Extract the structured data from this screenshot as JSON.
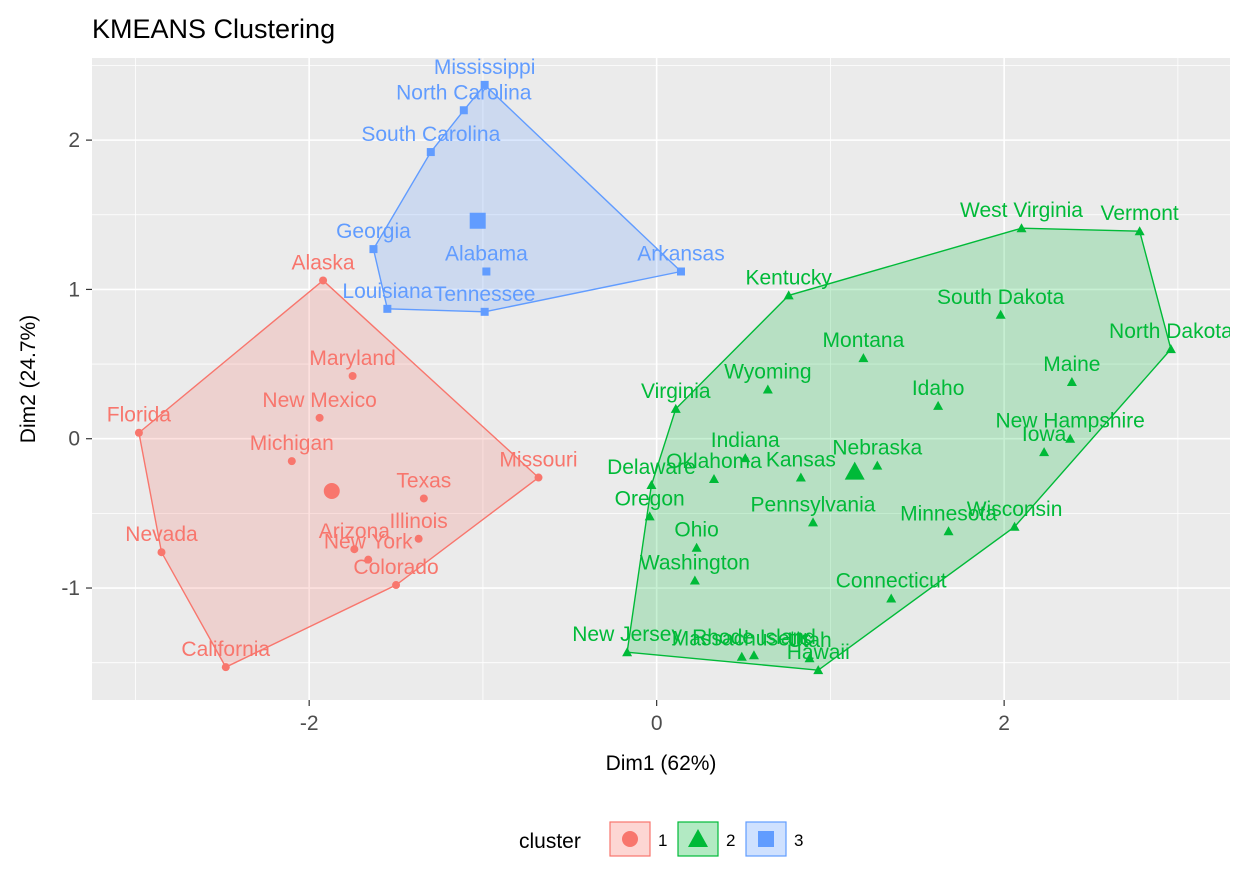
{
  "chart_data": {
    "type": "scatter",
    "title": "KMEANS Clustering",
    "xlabel": "Dim1 (62%)",
    "ylabel": "Dim2 (24.7%)",
    "xlim": [
      -3.25,
      3.3
    ],
    "ylim": [
      -1.75,
      2.55
    ],
    "x_ticks": [
      -2,
      0,
      2
    ],
    "y_ticks": [
      -1,
      0,
      1,
      2
    ],
    "grid": true,
    "legend": {
      "title": "cluster",
      "position": "bottom",
      "entries": [
        {
          "label": "1",
          "color": "#F8766D",
          "shape": "circle"
        },
        {
          "label": "2",
          "color": "#00BA38",
          "shape": "triangle"
        },
        {
          "label": "3",
          "color": "#619CFF",
          "shape": "square"
        }
      ]
    },
    "series": [
      {
        "name": "1",
        "color": "#F8766D",
        "shape": "circle",
        "centroid": [
          -1.87,
          -0.35
        ],
        "points": [
          {
            "label": "Alaska",
            "x": -1.92,
            "y": 1.06
          },
          {
            "label": "Florida",
            "x": -2.98,
            "y": 0.04
          },
          {
            "label": "Nevada",
            "x": -2.85,
            "y": -0.76
          },
          {
            "label": "California",
            "x": -2.48,
            "y": -1.53
          },
          {
            "label": "Maryland",
            "x": -1.75,
            "y": 0.42
          },
          {
            "label": "New Mexico",
            "x": -1.94,
            "y": 0.14
          },
          {
            "label": "Michigan",
            "x": -2.1,
            "y": -0.15
          },
          {
            "label": "Arizona",
            "x": -1.74,
            "y": -0.74
          },
          {
            "label": "New York",
            "x": -1.66,
            "y": -0.81
          },
          {
            "label": "Colorado",
            "x": -1.5,
            "y": -0.98
          },
          {
            "label": "Texas",
            "x": -1.34,
            "y": -0.4
          },
          {
            "label": "Illinois",
            "x": -1.37,
            "y": -0.67
          },
          {
            "label": "Missouri",
            "x": -0.68,
            "y": -0.26
          }
        ]
      },
      {
        "name": "2",
        "color": "#00BA38",
        "shape": "triangle",
        "centroid": [
          1.14,
          -0.22
        ],
        "points": [
          {
            "label": "West Virginia",
            "x": 2.1,
            "y": 1.41
          },
          {
            "label": "Vermont",
            "x": 2.78,
            "y": 1.39
          },
          {
            "label": "Kentucky",
            "x": 0.76,
            "y": 0.96
          },
          {
            "label": "South Dakota",
            "x": 1.98,
            "y": 0.83
          },
          {
            "label": "North Dakota",
            "x": 2.96,
            "y": 0.6
          },
          {
            "label": "Montana",
            "x": 1.19,
            "y": 0.54
          },
          {
            "label": "Maine",
            "x": 2.39,
            "y": 0.38
          },
          {
            "label": "Wyoming",
            "x": 0.64,
            "y": 0.33
          },
          {
            "label": "Idaho",
            "x": 1.62,
            "y": 0.22
          },
          {
            "label": "Virginia",
            "x": 0.11,
            "y": 0.2
          },
          {
            "label": "New Hampshire",
            "x": 2.38,
            "y": 0.0
          },
          {
            "label": "Iowa",
            "x": 2.23,
            "y": -0.09
          },
          {
            "label": "Nebraska",
            "x": 1.27,
            "y": -0.18
          },
          {
            "label": "Indiana",
            "x": 0.51,
            "y": -0.13
          },
          {
            "label": "Kansas",
            "x": 0.83,
            "y": -0.26
          },
          {
            "label": "Oklahoma",
            "x": 0.33,
            "y": -0.27
          },
          {
            "label": "Delaware",
            "x": -0.03,
            "y": -0.31
          },
          {
            "label": "Oregon",
            "x": -0.04,
            "y": -0.52
          },
          {
            "label": "Pennsylvania",
            "x": 0.9,
            "y": -0.56
          },
          {
            "label": "Minnesota",
            "x": 1.68,
            "y": -0.62
          },
          {
            "label": "Wisconsin",
            "x": 2.06,
            "y": -0.59
          },
          {
            "label": "Ohio",
            "x": 0.23,
            "y": -0.73
          },
          {
            "label": "Washington",
            "x": 0.22,
            "y": -0.95
          },
          {
            "label": "Connecticut",
            "x": 1.35,
            "y": -1.07
          },
          {
            "label": "New Jersey",
            "x": -0.17,
            "y": -1.43
          },
          {
            "label": "Massachusetts",
            "x": 0.49,
            "y": -1.46
          },
          {
            "label": "Rhode Island",
            "x": 0.56,
            "y": -1.45
          },
          {
            "label": "Utah",
            "x": 0.88,
            "y": -1.47
          },
          {
            "label": "Hawaii",
            "x": 0.93,
            "y": -1.55
          }
        ]
      },
      {
        "name": "3",
        "color": "#619CFF",
        "shape": "square",
        "centroid": [
          -1.03,
          1.46
        ],
        "points": [
          {
            "label": "Mississippi",
            "x": -0.99,
            "y": 2.37
          },
          {
            "label": "North Carolina",
            "x": -1.11,
            "y": 2.2
          },
          {
            "label": "South Carolina",
            "x": -1.3,
            "y": 1.92
          },
          {
            "label": "Georgia",
            "x": -1.63,
            "y": 1.27
          },
          {
            "label": "Alabama",
            "x": -0.98,
            "y": 1.12
          },
          {
            "label": "Arkansas",
            "x": 0.14,
            "y": 1.12
          },
          {
            "label": "Louisiana",
            "x": -1.55,
            "y": 0.87
          },
          {
            "label": "Tennessee",
            "x": -0.99,
            "y": 0.85
          }
        ]
      }
    ]
  }
}
